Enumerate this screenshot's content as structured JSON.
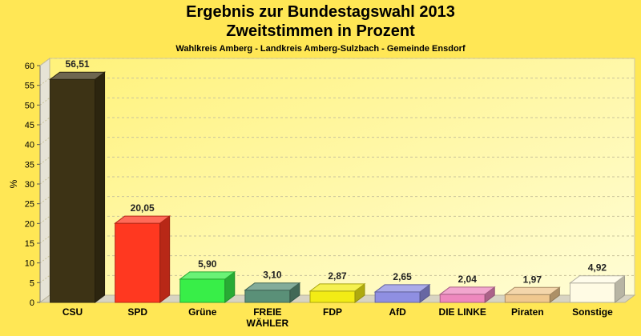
{
  "title": "Ergebnis zur Bundestagswahl 2013",
  "subtitle": "Zweitstimmen in Prozent",
  "caption": "Wahlkreis Amberg - Landkreis Amberg-Sulzbach - Gemeinde Ensdorf",
  "chart_data": {
    "type": "bar",
    "title": "Ergebnis zur Bundestagswahl 2013",
    "subtitle": "Zweitstimmen in Prozent",
    "ylabel": "%",
    "ylim": [
      0,
      60
    ],
    "yticks": [
      0,
      5,
      10,
      15,
      20,
      25,
      30,
      35,
      40,
      45,
      50,
      55,
      60
    ],
    "grid": true,
    "categories": [
      "CSU",
      "SPD",
      "Grüne",
      "FREIE WÄHLER",
      "FDP",
      "AfD",
      "DIE LINKE",
      "Piraten",
      "Sonstige"
    ],
    "category_lines": [
      [
        "CSU"
      ],
      [
        "SPD"
      ],
      [
        "Grüne"
      ],
      [
        "FREIE",
        "WÄHLER"
      ],
      [
        "FDP"
      ],
      [
        "AfD"
      ],
      [
        "DIE LINKE"
      ],
      [
        "Piraten"
      ],
      [
        "Sonstige"
      ]
    ],
    "values": [
      56.51,
      20.05,
      5.9,
      3.1,
      2.87,
      2.65,
      2.04,
      1.97,
      4.92
    ],
    "value_labels": [
      "56,51",
      "20,05",
      "5,90",
      "3,10",
      "2,87",
      "2,65",
      "2,04",
      "1,97",
      "4,92"
    ],
    "colors": [
      "#3d3315",
      "#ff3820",
      "#38ee48",
      "#5a9078",
      "#f2ec15",
      "#8f8fe2",
      "#ee88be",
      "#f0c88f",
      "#fffbe4"
    ]
  }
}
